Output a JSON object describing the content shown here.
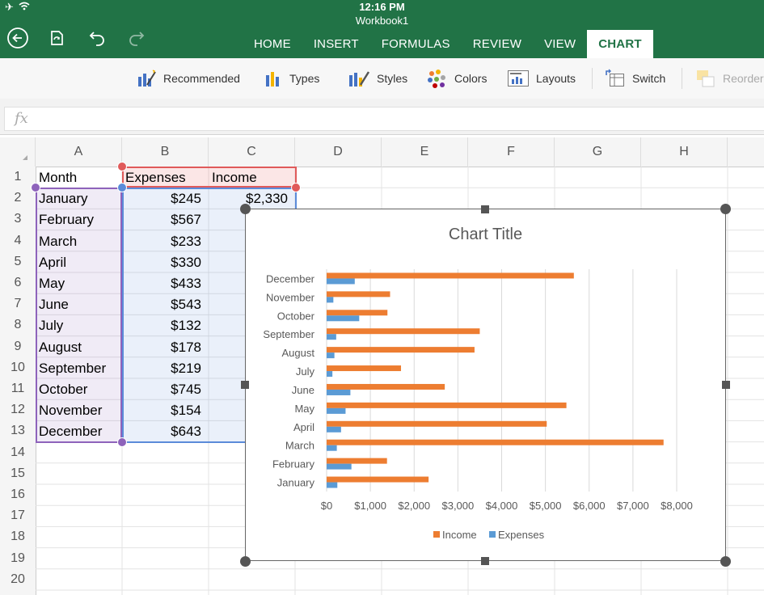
{
  "status": {
    "time": "12:16 PM"
  },
  "workbook_title": "Workbook1",
  "tabs": [
    "HOME",
    "INSERT",
    "FORMULAS",
    "REVIEW",
    "VIEW",
    "CHART"
  ],
  "active_tab": "CHART",
  "ribbon": {
    "recommended": "Recommended",
    "types": "Types",
    "styles": "Styles",
    "colors": "Colors",
    "layouts": "Layouts",
    "switch": "Switch",
    "reorder": "Reorder"
  },
  "formula_bar": {
    "fx": "fx",
    "value": ""
  },
  "columns": [
    "A",
    "B",
    "C",
    "D",
    "E",
    "F",
    "G",
    "H"
  ],
  "rows": [
    "1",
    "2",
    "3",
    "4",
    "5",
    "6",
    "7",
    "8",
    "9",
    "10",
    "11",
    "12",
    "13",
    "14",
    "15",
    "16",
    "17",
    "18",
    "19",
    "20"
  ],
  "sheet": {
    "header": [
      "Month",
      "Expenses",
      "Income"
    ],
    "months": [
      "January",
      "February",
      "March",
      "April",
      "May",
      "June",
      "July",
      "August",
      "September",
      "October",
      "November",
      "December"
    ],
    "expenses": [
      "$245",
      "$567",
      "$233",
      "$330",
      "$433",
      "$543",
      "$132",
      "$178",
      "$219",
      "$745",
      "$154",
      "$643"
    ],
    "income_visible": "$2,330"
  },
  "colors": {
    "excel_green": "#217346",
    "income": "#ED7D31",
    "expenses": "#5B9BD5"
  },
  "chart_data": {
    "type": "bar",
    "orientation": "horizontal",
    "title": "Chart Title",
    "categories": [
      "January",
      "February",
      "March",
      "April",
      "May",
      "June",
      "July",
      "August",
      "September",
      "October",
      "November",
      "December"
    ],
    "series": [
      {
        "name": "Income",
        "values": [
          2330,
          1380,
          7700,
          5030,
          5480,
          2700,
          1700,
          3380,
          3500,
          1390,
          1450,
          5650
        ]
      },
      {
        "name": "Expenses",
        "values": [
          245,
          567,
          233,
          330,
          433,
          543,
          132,
          178,
          219,
          745,
          154,
          643
        ]
      }
    ],
    "xlim": [
      0,
      8000
    ],
    "x_ticks": [
      "$0",
      "$1,000",
      "$2,000",
      "$3,000",
      "$4,000",
      "$5,000",
      "$6,000",
      "$7,000",
      "$8,000"
    ],
    "legend": {
      "position": "bottom",
      "entries": [
        "Income",
        "Expenses"
      ]
    },
    "grid": true
  }
}
